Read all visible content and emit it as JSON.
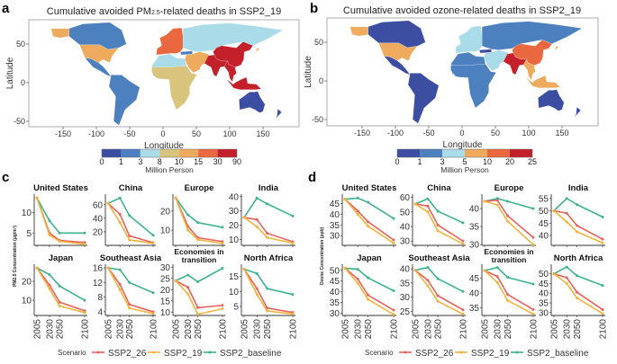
{
  "panels": {
    "a": {
      "label": "a",
      "title_pre": "Cumulative avoided PM",
      "title_sub": "2.5",
      "title_post": "-related deaths in SSP2_19"
    },
    "b": {
      "label": "b",
      "title": "Cumulative avoided ozone-related deaths in SSP2_19"
    },
    "c": {
      "label": "c",
      "ylabel": "PM2.5 Concentration (μg/m³)"
    },
    "d": {
      "label": "d",
      "ylabel": "Ozone Concentration (ppb)"
    }
  },
  "maps": [
    {
      "xlabel": "Longitude",
      "ylabel": "Latitude",
      "xticks": [
        -150,
        -100,
        -50,
        0,
        50,
        100,
        150
      ],
      "yticks": [
        -50,
        0,
        50
      ],
      "colorbar": {
        "title": "Million Person",
        "breaks": [
          "0",
          "1",
          "3",
          "8",
          "10",
          "15",
          "30",
          "90"
        ],
        "colors": [
          "#3b4ea2",
          "#4c80bf",
          "#a9dbe8",
          "#d8c47c",
          "#eeab5e",
          "#e9683f",
          "#c3202b"
        ]
      },
      "fill_bins": {
        "canada": 1,
        "alaska": 4,
        "usa": 4,
        "mexico": 1,
        "samerica": 1,
        "europe": 5,
        "turkey": 1,
        "russia": 2,
        "nafrica": 2,
        "wafrica": 1,
        "africa": 3,
        "mideast": 4,
        "india": 6,
        "china": 6,
        "seasia": 6,
        "indonesia": 6,
        "japan": 4,
        "australia": 0,
        "nz": 0
      }
    },
    {
      "xlabel": "Longitude",
      "ylabel": "Latitude",
      "xticks": [
        -150,
        -100,
        -50,
        0,
        50,
        100,
        150
      ],
      "yticks": [
        -50,
        0,
        50
      ],
      "colorbar": {
        "title": "Million Person",
        "breaks": [
          "0",
          "1",
          "3",
          "5",
          "10",
          "20",
          "25"
        ],
        "colors": [
          "#3b4ea2",
          "#4c80bf",
          "#a9dbe8",
          "#eeab5e",
          "#e9683f",
          "#c3202b"
        ]
      },
      "fill_bins": {
        "canada": 0,
        "alaska": 3,
        "usa": 3,
        "mexico": 0,
        "samerica": 0,
        "europe": 2,
        "turkey": 0,
        "russia": 1,
        "nafrica": 1,
        "wafrica": 0,
        "africa": 1,
        "mideast": 2,
        "india": 5,
        "china": 4,
        "seasia": 3,
        "indonesia": 3,
        "japan": 3,
        "australia": 0,
        "nz": 0
      }
    }
  ],
  "legend": {
    "title": "Scenario",
    "items": [
      {
        "name": "SSP2_26",
        "color": "#e8615a"
      },
      {
        "name": "SSP2_19",
        "color": "#f0b43c"
      },
      {
        "name": "SSP2_baseline",
        "color": "#3db38f"
      }
    ]
  },
  "chart_data": [
    {
      "type": "line",
      "panel": "c",
      "ylabel": "PM2.5 Concentration (μg/m³)",
      "x": [
        2005,
        2030,
        2050,
        2100
      ],
      "xticks": [
        "2005",
        "2030",
        "2050",
        "2100"
      ],
      "facets": [
        {
          "title": "United States",
          "ylim": [
            2,
            14
          ],
          "yticks": [
            5,
            10
          ],
          "series": [
            {
              "name": "SSP2_26",
              "values": [
                13.5,
                5,
                3.2,
                2.7
              ]
            },
            {
              "name": "SSP2_19",
              "values": [
                13.5,
                4.5,
                3,
                2.3
              ]
            },
            {
              "name": "SSP2_baseline",
              "values": [
                13.5,
                8,
                5,
                5
              ]
            }
          ]
        },
        {
          "title": "China",
          "ylim": [
            0,
            73
          ],
          "yticks": [
            20,
            40,
            60
          ],
          "series": [
            {
              "name": "SSP2_26",
              "values": [
                62,
                46,
                14,
                4
              ]
            },
            {
              "name": "SSP2_19",
              "values": [
                62,
                34,
                8,
                3
              ]
            },
            {
              "name": "SSP2_baseline",
              "values": [
                62,
                70,
                44,
                15
              ]
            }
          ]
        },
        {
          "title": "Europe",
          "ylim": [
            2,
            28
          ],
          "yticks": [
            10,
            20
          ],
          "series": [
            {
              "name": "SSP2_26",
              "values": [
                27,
                12,
                6,
                4
              ]
            },
            {
              "name": "SSP2_19",
              "values": [
                27,
                10,
                5,
                3
              ]
            },
            {
              "name": "SSP2_baseline",
              "values": [
                27,
                18,
                14,
                11.5
              ]
            }
          ]
        },
        {
          "title": "India",
          "ylim": [
            6,
            40.5
          ],
          "yticks": [
            10,
            20,
            30,
            40
          ],
          "series": [
            {
              "name": "SSP2_26",
              "values": [
                25.5,
                24,
                14.5,
                8.5
              ]
            },
            {
              "name": "SSP2_19",
              "values": [
                25.5,
                19,
                11.5,
                7.5
              ]
            },
            {
              "name": "SSP2_baseline",
              "values": [
                25.5,
                39,
                35,
                26.5
              ]
            }
          ]
        },
        {
          "title": "Japan",
          "ylim": [
            2,
            28
          ],
          "yticks": [
            10,
            20
          ],
          "series": [
            {
              "name": "SSP2_26",
              "values": [
                27,
                18,
                9,
                4.5
              ]
            },
            {
              "name": "SSP2_19",
              "values": [
                27,
                16,
                7,
                3.5
              ]
            },
            {
              "name": "SSP2_baseline",
              "values": [
                27,
                23.5,
                17.5,
                10
              ]
            }
          ]
        },
        {
          "title": "Southeast Asia",
          "ylim": [
            3,
            16.5
          ],
          "yticks": [
            4,
            8,
            12,
            16
          ],
          "series": [
            {
              "name": "SSP2_26",
              "values": [
                16,
                11.5,
                6,
                4
              ]
            },
            {
              "name": "SSP2_19",
              "values": [
                16,
                10,
                5,
                3.5
              ]
            },
            {
              "name": "SSP2_baseline",
              "values": [
                16,
                15.5,
                12,
                9.2
              ]
            }
          ]
        },
        {
          "title": "Economies in transition",
          "ylim": [
            8.5,
            30.5
          ],
          "yticks": [
            10,
            15,
            20,
            25,
            30
          ],
          "series": [
            {
              "name": "SSP2_26",
              "values": [
                24,
                21,
                12,
                13
              ]
            },
            {
              "name": "SSP2_19",
              "values": [
                24,
                18,
                9,
                11.5
              ]
            },
            {
              "name": "SSP2_baseline",
              "values": [
                24,
                26.5,
                23.5,
                29.5
              ]
            }
          ]
        },
        {
          "title": "North Africa",
          "ylim": [
            2,
            18.5
          ],
          "yticks": [
            5,
            10,
            15
          ],
          "series": [
            {
              "name": "SSP2_26",
              "values": [
                17.5,
                11,
                4.5,
                3
              ]
            },
            {
              "name": "SSP2_19",
              "values": [
                17.5,
                9,
                3.5,
                2.5
              ]
            },
            {
              "name": "SSP2_baseline",
              "values": [
                17.5,
                16,
                11,
                9
              ]
            }
          ]
        }
      ]
    },
    {
      "type": "line",
      "panel": "d",
      "ylabel": "Ozone Concentration (ppb)",
      "x": [
        2005,
        2030,
        2050,
        2100
      ],
      "xticks": [
        "2005",
        "2030",
        "2050",
        "2100"
      ],
      "facets": [
        {
          "title": "United States",
          "ylim": [
            25.5,
            48.5
          ],
          "yticks": [
            30,
            35,
            40,
            45
          ],
          "series": [
            {
              "name": "SSP2_26",
              "values": [
                47,
                41.5,
                36.5,
                28
              ]
            },
            {
              "name": "SSP2_19",
              "values": [
                47,
                40,
                34.5,
                26.5
              ]
            },
            {
              "name": "SSP2_baseline",
              "values": [
                47,
                47.5,
                45.5,
                38
              ]
            }
          ]
        },
        {
          "title": "China",
          "ylim": [
            27,
            61
          ],
          "yticks": [
            30,
            40,
            50,
            60
          ],
          "series": [
            {
              "name": "SSP2_26",
              "values": [
                55.5,
                54,
                41,
                30
              ]
            },
            {
              "name": "SSP2_19",
              "values": [
                55.5,
                50,
                37,
                28
              ]
            },
            {
              "name": "SSP2_baseline",
              "values": [
                55.5,
                59,
                50.5,
                42.5
              ]
            }
          ]
        },
        {
          "title": "Europe",
          "ylim": [
            29.8,
            43.5
          ],
          "yticks": [
            30,
            35,
            40
          ],
          "series": [
            {
              "name": "SSP2_26",
              "values": [
                42,
                42.3,
                38,
                32
              ]
            },
            {
              "name": "SSP2_19",
              "values": [
                42,
                41,
                36.5,
                30
              ]
            },
            {
              "name": "SSP2_baseline",
              "values": [
                42,
                42.8,
                42,
                40
              ]
            }
          ]
        },
        {
          "title": "India",
          "ylim": [
            36,
            56
          ],
          "yticks": [
            40,
            45,
            50,
            55
          ],
          "series": [
            {
              "name": "SSP2_26",
              "values": [
                50,
                49,
                44,
                38.5
              ]
            },
            {
              "name": "SSP2_19",
              "values": [
                50,
                45.5,
                41.5,
                37
              ]
            },
            {
              "name": "SSP2_baseline",
              "values": [
                50,
                55,
                52.5,
                47.5
              ]
            }
          ]
        },
        {
          "title": "Japan",
          "ylim": [
            29,
            52
          ],
          "yticks": [
            30,
            35,
            40,
            45,
            50
          ],
          "series": [
            {
              "name": "SSP2_26",
              "values": [
                51,
                46,
                38.5,
                31.5
              ]
            },
            {
              "name": "SSP2_19",
              "values": [
                51,
                44,
                36.5,
                29.5
              ]
            },
            {
              "name": "SSP2_baseline",
              "values": [
                51,
                50.5,
                46.5,
                40.5
              ]
            }
          ]
        },
        {
          "title": "Southeast Asia",
          "ylim": [
            23.5,
            41
          ],
          "yticks": [
            25,
            30,
            35,
            40
          ],
          "series": [
            {
              "name": "SSP2_26",
              "values": [
                39.5,
                36,
                30.5,
                25.5
              ]
            },
            {
              "name": "SSP2_19",
              "values": [
                39.5,
                34,
                28.5,
                24
              ]
            },
            {
              "name": "SSP2_baseline",
              "values": [
                39.5,
                40.5,
                36.5,
                32
              ]
            }
          ]
        },
        {
          "title": "Economies in transition",
          "ylim": [
            32.5,
            49
          ],
          "yticks": [
            35,
            40,
            45
          ],
          "series": [
            {
              "name": "SSP2_26",
              "values": [
                47.5,
                45.5,
                39.5,
                34.5
              ]
            },
            {
              "name": "SSP2_19",
              "values": [
                47.5,
                43.5,
                37.5,
                33
              ]
            },
            {
              "name": "SSP2_baseline",
              "values": [
                47.5,
                48.5,
                45.2,
                43
              ]
            }
          ]
        },
        {
          "title": "North Africa",
          "ylim": [
            28.5,
            54
          ],
          "yticks": [
            30,
            35,
            40,
            45,
            50
          ],
          "series": [
            {
              "name": "SSP2_26",
              "values": [
                50,
                48,
                40.5,
                31.5
              ]
            },
            {
              "name": "SSP2_19",
              "values": [
                50,
                45,
                37.5,
                29.5
              ]
            },
            {
              "name": "SSP2_baseline",
              "values": [
                50,
                53.5,
                49,
                44
              ]
            }
          ]
        }
      ]
    }
  ]
}
